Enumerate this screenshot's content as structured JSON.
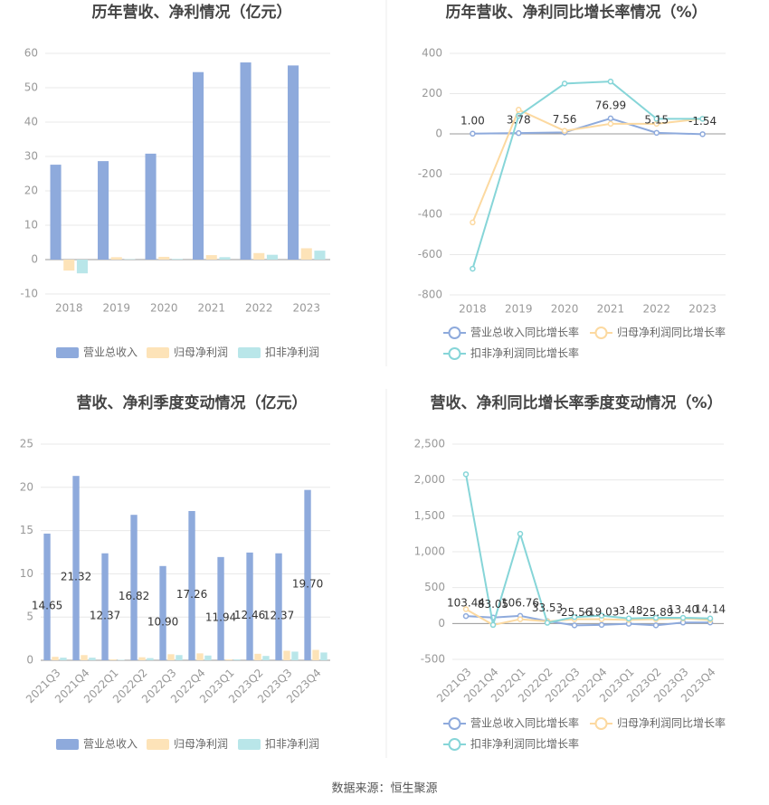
{
  "chart_data": [
    {
      "type": "bar",
      "title": "历年营收、净利情况（亿元）",
      "categories": [
        "2018",
        "2019",
        "2020",
        "2021",
        "2022",
        "2023"
      ],
      "series": [
        {
          "name": "营业总收入",
          "color": "#8eaadc",
          "values": [
            27.61,
            28.65,
            30.82,
            54.55,
            57.36,
            56.48
          ]
        },
        {
          "name": "归母净利润",
          "color": "#fde3b8",
          "values": [
            -3.2,
            0.7,
            0.8,
            1.3,
            1.9,
            3.3
          ]
        },
        {
          "name": "扣非净利润",
          "color": "#b9e6e9",
          "values": [
            -4.0,
            0.1,
            0.2,
            0.7,
            1.4,
            2.6
          ]
        }
      ],
      "ylim": [
        -10,
        60
      ],
      "yticks": [
        -10,
        0,
        10,
        20,
        30,
        40,
        50,
        60
      ],
      "grid": true,
      "legend": "bottom"
    },
    {
      "type": "line",
      "title": "历年营收、净利同比增长率情况（%）",
      "categories": [
        "2018",
        "2019",
        "2020",
        "2021",
        "2022",
        "2023"
      ],
      "series": [
        {
          "name": "营业总收入同比增长率",
          "color": "#8eaadc",
          "values": [
            1.0,
            3.78,
            7.56,
            76.99,
            5.15,
            -1.54
          ],
          "value_labels": [
            "1.00",
            "3.78",
            "7.56",
            "76.99",
            "5.15",
            "-1.54"
          ]
        },
        {
          "name": "归母净利润同比增长率",
          "color": "#fcd9a0",
          "values": [
            -440,
            120,
            15,
            50,
            50,
            75
          ]
        },
        {
          "name": "扣非净利润同比增长率",
          "color": "#86d5d8",
          "values": [
            -670,
            90,
            250,
            260,
            75,
            75
          ]
        }
      ],
      "ylim": [
        -800,
        400
      ],
      "yticks": [
        -800,
        -600,
        -400,
        -200,
        0,
        200,
        400
      ],
      "grid": true,
      "legend": "bottom"
    },
    {
      "type": "bar",
      "title": "营收、净利季度变动情况（亿元）",
      "categories": [
        "2021Q3",
        "2021Q4",
        "2022Q1",
        "2022Q2",
        "2022Q3",
        "2022Q4",
        "2023Q1",
        "2023Q2",
        "2023Q3",
        "2023Q4"
      ],
      "series": [
        {
          "name": "营业总收入",
          "color": "#8eaadc",
          "values": [
            14.65,
            21.32,
            12.37,
            16.82,
            10.9,
            17.26,
            11.94,
            12.46,
            12.37,
            19.7
          ],
          "value_labels": [
            "14.65",
            "21.32",
            "12.37",
            "16.82",
            "10.90",
            "17.26",
            "11.94",
            "12.46",
            "12.37",
            "19.70"
          ]
        },
        {
          "name": "归母净利润",
          "color": "#fde3b8",
          "values": [
            0.4,
            0.6,
            0.1,
            0.35,
            0.7,
            0.8,
            0.1,
            0.75,
            1.1,
            1.2
          ]
        },
        {
          "name": "扣非净利润",
          "color": "#b9e6e9",
          "values": [
            0.3,
            0.3,
            0.05,
            0.25,
            0.6,
            0.55,
            0.1,
            0.5,
            1.0,
            0.9
          ]
        }
      ],
      "ylim": [
        0,
        25
      ],
      "yticks": [
        0,
        5,
        10,
        15,
        20,
        25
      ],
      "grid": true,
      "legend": "bottom"
    },
    {
      "type": "line",
      "title": "营收、净利同比增长率季度变动情况（%）",
      "categories": [
        "2021Q3",
        "2021Q4",
        "2022Q1",
        "2022Q2",
        "2022Q3",
        "2022Q4",
        "2023Q1",
        "2023Q2",
        "2023Q3",
        "2023Q4"
      ],
      "series": [
        {
          "name": "营业总收入同比增长率",
          "color": "#8eaadc",
          "values": [
            103.44,
            83.05,
            106.76,
            33.53,
            -25.56,
            -19.03,
            -3.48,
            -25.89,
            13.4,
            14.14
          ],
          "value_labels": [
            "103.44",
            "83.05",
            "106.76",
            "33.53",
            "-25.56",
            "-19.03",
            "-3.48",
            "-25.89",
            "13.40",
            "14.14"
          ]
        },
        {
          "name": "归母净利润同比增长率",
          "color": "#fcd9a0",
          "values": [
            200,
            -20,
            60,
            30,
            60,
            60,
            50,
            60,
            70,
            50
          ]
        },
        {
          "name": "扣非净利润同比增长率",
          "color": "#86d5d8",
          "values": [
            2080,
            -20,
            1250,
            10,
            90,
            110,
            70,
            80,
            80,
            70
          ]
        }
      ],
      "ylim": [
        -500,
        2500
      ],
      "yticks": [
        -500,
        0,
        500,
        {
          "value": 1000,
          "label": "1,000"
        },
        {
          "value": 1500,
          "label": "1,500"
        },
        {
          "value": 2000,
          "label": "2,000"
        },
        {
          "value": 2500,
          "label": "2,500"
        }
      ],
      "grid": true,
      "legend": "bottom"
    }
  ],
  "source": "数据来源：恒生聚源"
}
